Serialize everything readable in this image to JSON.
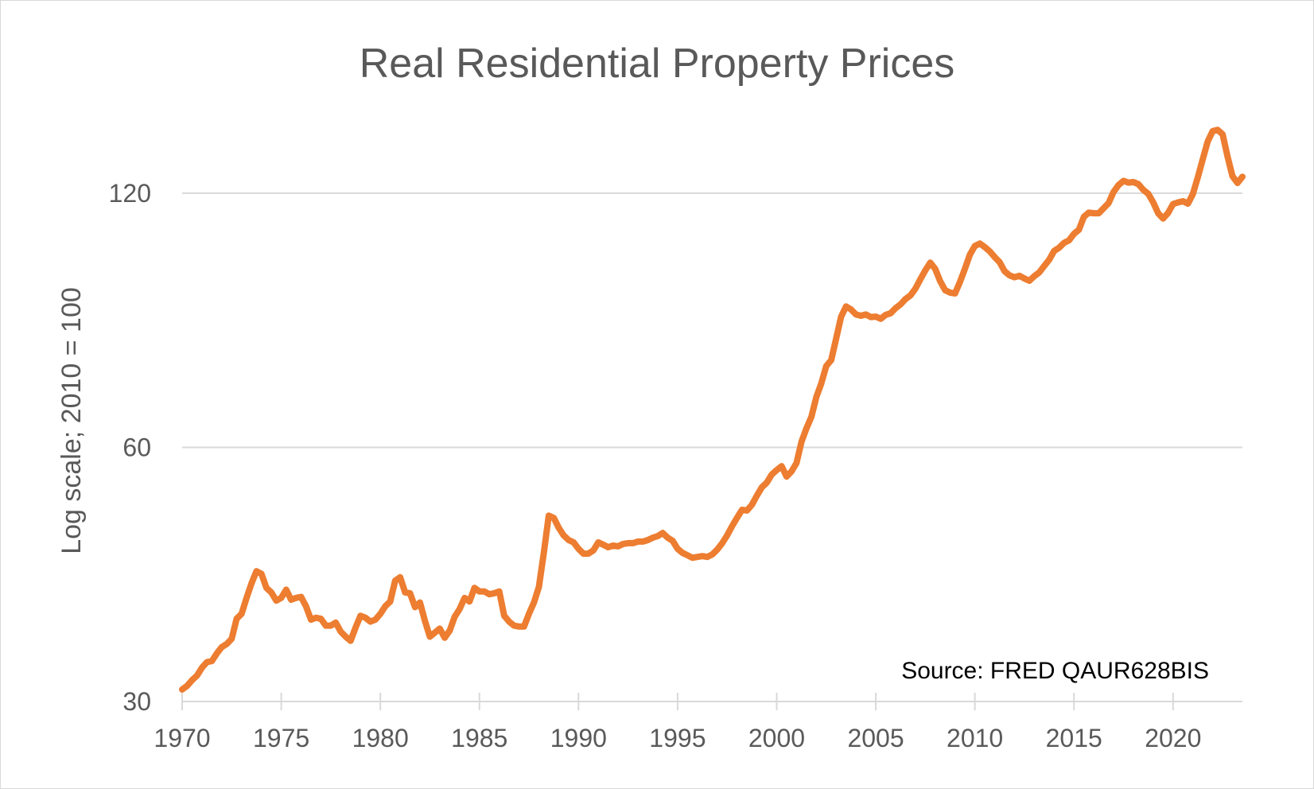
{
  "chart_data": {
    "type": "line",
    "title": "Real Residential Property Prices",
    "xlabel": "",
    "ylabel": "Log scale; 2010 = 100",
    "y_scale": "log",
    "ylim": [
      30,
      150
    ],
    "xlim": [
      1970,
      2023.5
    ],
    "x_ticks": [
      1970,
      1975,
      1980,
      1985,
      1990,
      1995,
      2000,
      2005,
      2010,
      2015,
      2020
    ],
    "x_tick_labels": [
      "1970",
      "1975",
      "1980",
      "1985",
      "1990",
      "1995",
      "2000",
      "2005",
      "2010",
      "2015",
      "2020"
    ],
    "y_ticks": [
      30,
      60,
      120
    ],
    "y_tick_labels": [
      "30",
      "60",
      "120"
    ],
    "gridlines": "horizontal",
    "annotation": "Source: FRED QAUR628BIS",
    "series": [
      {
        "color": "#ED7D31",
        "x": [
          1970.0,
          1970.25,
          1970.5,
          1970.75,
          1971.0,
          1971.25,
          1971.5,
          1971.75,
          1972.0,
          1972.25,
          1972.5,
          1972.75,
          1973.0,
          1973.25,
          1973.5,
          1973.75,
          1974.0,
          1974.25,
          1974.5,
          1974.75,
          1975.0,
          1975.25,
          1975.5,
          1975.75,
          1976.0,
          1976.25,
          1976.5,
          1976.75,
          1977.0,
          1977.25,
          1977.5,
          1977.75,
          1978.0,
          1978.25,
          1978.5,
          1978.75,
          1979.0,
          1979.25,
          1979.5,
          1979.75,
          1980.0,
          1980.25,
          1980.5,
          1980.75,
          1981.0,
          1981.25,
          1981.5,
          1981.75,
          1982.0,
          1982.25,
          1982.5,
          1982.75,
          1983.0,
          1983.25,
          1983.5,
          1983.75,
          1984.0,
          1984.25,
          1984.5,
          1984.75,
          1985.0,
          1985.25,
          1985.5,
          1985.75,
          1986.0,
          1986.25,
          1986.5,
          1986.75,
          1987.0,
          1987.25,
          1987.5,
          1987.75,
          1988.0,
          1988.25,
          1988.5,
          1988.75,
          1989.0,
          1989.25,
          1989.5,
          1989.75,
          1990.0,
          1990.25,
          1990.5,
          1990.75,
          1991.0,
          1991.25,
          1991.5,
          1991.75,
          1992.0,
          1992.25,
          1992.5,
          1992.75,
          1993.0,
          1993.25,
          1993.5,
          1993.75,
          1994.0,
          1994.25,
          1994.5,
          1994.75,
          1995.0,
          1995.25,
          1995.5,
          1995.75,
          1996.0,
          1996.25,
          1996.5,
          1996.75,
          1997.0,
          1997.25,
          1997.5,
          1997.75,
          1998.0,
          1998.25,
          1998.5,
          1998.75,
          1999.0,
          1999.25,
          1999.5,
          1999.75,
          2000.0,
          2000.25,
          2000.5,
          2000.75,
          2001.0,
          2001.25,
          2001.5,
          2001.75,
          2002.0,
          2002.25,
          2002.5,
          2002.75,
          2003.0,
          2003.25,
          2003.5,
          2003.75,
          2004.0,
          2004.25,
          2004.5,
          2004.75,
          2005.0,
          2005.25,
          2005.5,
          2005.75,
          2006.0,
          2006.25,
          2006.5,
          2006.75,
          2007.0,
          2007.25,
          2007.5,
          2007.75,
          2008.0,
          2008.25,
          2008.5,
          2008.75,
          2009.0,
          2009.25,
          2009.5,
          2009.75,
          2010.0,
          2010.25,
          2010.5,
          2010.75,
          2011.0,
          2011.25,
          2011.5,
          2011.75,
          2012.0,
          2012.25,
          2012.5,
          2012.75,
          2013.0,
          2013.25,
          2013.5,
          2013.75,
          2014.0,
          2014.25,
          2014.5,
          2014.75,
          2015.0,
          2015.25,
          2015.5,
          2015.75,
          2016.0,
          2016.25,
          2016.5,
          2016.75,
          2017.0,
          2017.25,
          2017.5,
          2017.75,
          2018.0,
          2018.25,
          2018.5,
          2018.75,
          2019.0,
          2019.25,
          2019.5,
          2019.75,
          2020.0,
          2020.25,
          2020.5,
          2020.75,
          2021.0,
          2021.25,
          2021.5,
          2021.75,
          2022.0,
          2022.25,
          2022.5,
          2022.75,
          2023.0,
          2023.25,
          2023.5
        ],
        "values": [
          31.0,
          31.3,
          31.8,
          32.2,
          32.9,
          33.4,
          33.5,
          34.2,
          34.8,
          35.1,
          35.6,
          37.6,
          38.1,
          39.8,
          41.4,
          42.8,
          42.5,
          40.9,
          40.4,
          39.5,
          39.8,
          40.7,
          39.6,
          39.8,
          39.9,
          38.9,
          37.5,
          37.7,
          37.6,
          36.9,
          36.9,
          37.2,
          36.3,
          35.8,
          35.4,
          36.7,
          37.9,
          37.7,
          37.3,
          37.5,
          38.1,
          38.9,
          39.4,
          41.7,
          42.1,
          40.4,
          40.3,
          38.8,
          39.3,
          37.4,
          35.8,
          36.2,
          36.6,
          35.7,
          36.4,
          37.8,
          38.6,
          39.8,
          39.4,
          40.9,
          40.5,
          40.5,
          40.2,
          40.3,
          40.5,
          37.9,
          37.3,
          36.9,
          36.8,
          36.8,
          38.1,
          39.3,
          41.0,
          45.0,
          49.8,
          49.5,
          48.2,
          47.2,
          46.6,
          46.3,
          45.5,
          44.9,
          44.9,
          45.3,
          46.3,
          46.0,
          45.7,
          45.9,
          45.8,
          46.1,
          46.2,
          46.2,
          46.4,
          46.4,
          46.6,
          46.9,
          47.1,
          47.5,
          46.9,
          46.5,
          45.5,
          45.0,
          44.7,
          44.4,
          44.5,
          44.6,
          44.5,
          44.8,
          45.4,
          46.2,
          47.2,
          48.4,
          49.5,
          50.6,
          50.5,
          51.3,
          52.6,
          53.8,
          54.5,
          55.7,
          56.4,
          57.0,
          55.4,
          56.2,
          57.5,
          60.9,
          63.2,
          65.2,
          68.8,
          71.4,
          74.9,
          76.1,
          80.7,
          85.7,
          88.1,
          87.4,
          86.2,
          85.9,
          86.2,
          85.6,
          85.7,
          85.2,
          86.1,
          86.5,
          87.7,
          88.6,
          89.9,
          90.8,
          92.5,
          94.9,
          97.2,
          99.3,
          97.6,
          94.4,
          92.1,
          91.5,
          91.3,
          94.2,
          97.7,
          101.5,
          103.9,
          104.6,
          103.6,
          102.4,
          100.8,
          99.4,
          97.0,
          95.9,
          95.4,
          95.8,
          95.1,
          94.5,
          95.7,
          96.7,
          98.4,
          100.1,
          102.5,
          103.4,
          104.8,
          105.5,
          107.4,
          108.6,
          112.5,
          113.8,
          113.6,
          113.6,
          115.2,
          116.8,
          120.4,
          122.7,
          124.1,
          123.5,
          123.7,
          123.0,
          121.1,
          119.8,
          117.0,
          113.6,
          112.0,
          113.7,
          116.5,
          117.0,
          117.4,
          116.6,
          119.7,
          125.3,
          131.7,
          138.2,
          142.1,
          142.6,
          140.9,
          132.6,
          125.7,
          123.4,
          125.5
        ]
      }
    ]
  }
}
